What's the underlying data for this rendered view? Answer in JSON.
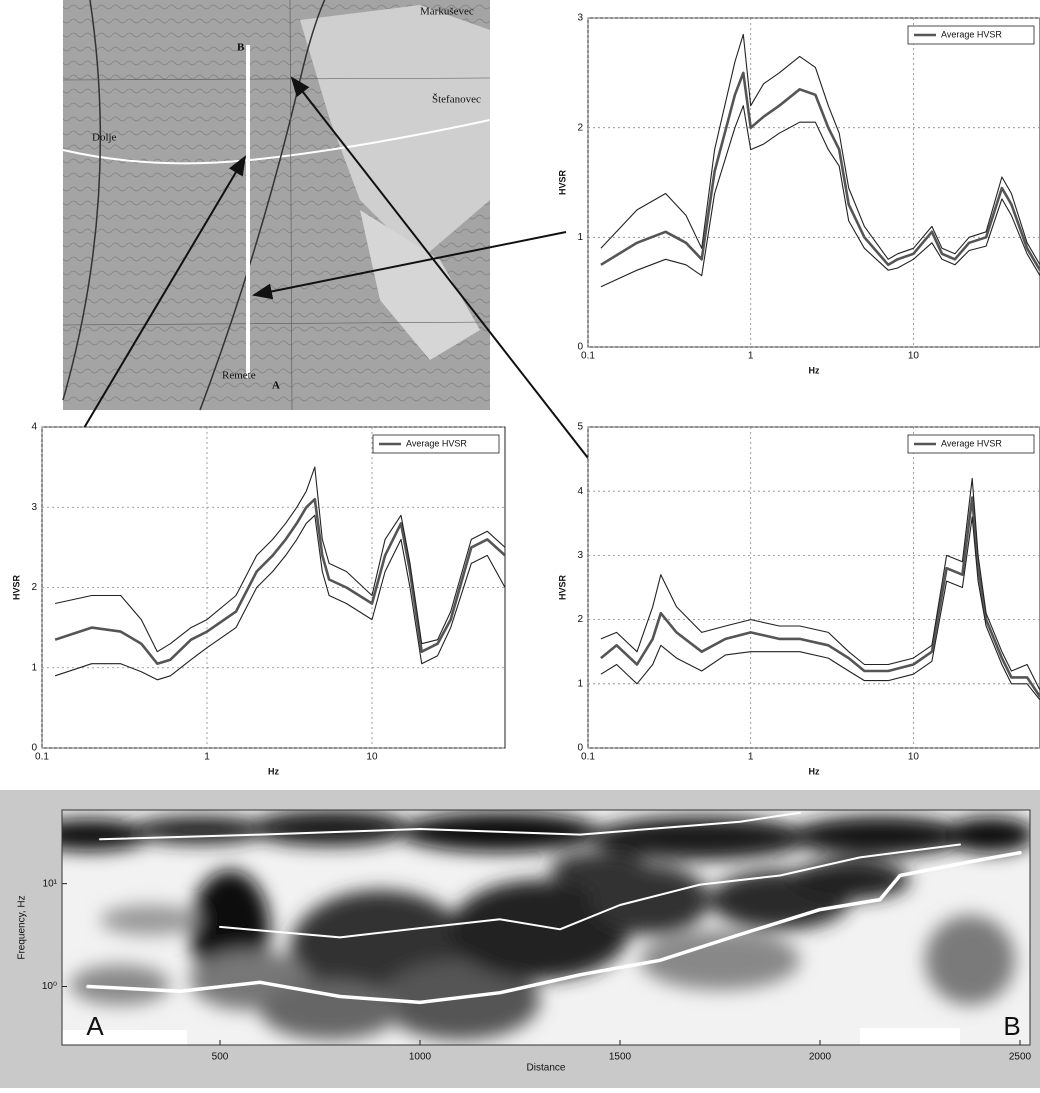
{
  "map": {
    "labels": [
      "B",
      "A",
      "Markuševec",
      "Štefanovec",
      "Dolje",
      "Remete"
    ]
  },
  "chart_data": [
    {
      "type": "line",
      "log_x": true,
      "grid": true,
      "legend": "upper right",
      "x_label": "Hz",
      "y_label": "HVSR",
      "xlim": [
        0.1,
        60
      ],
      "xticks": [
        0.1,
        1,
        10
      ],
      "ylim": [
        0,
        3
      ],
      "yticks": [
        0,
        1,
        2,
        3
      ],
      "x": [
        0.12,
        0.2,
        0.3,
        0.4,
        0.5,
        0.6,
        0.8,
        0.9,
        1,
        1.2,
        1.5,
        2,
        2.5,
        3,
        3.5,
        4,
        5,
        7,
        8,
        10,
        13,
        15,
        18,
        22,
        28,
        35,
        40,
        50,
        60
      ],
      "series": [
        {
          "name": "Average HVSR",
          "color": "#555555",
          "values": [
            0.75,
            0.95,
            1.05,
            0.95,
            0.8,
            1.6,
            2.3,
            2.5,
            2.0,
            2.1,
            2.2,
            2.35,
            2.3,
            2.0,
            1.8,
            1.3,
            1.0,
            0.75,
            0.8,
            0.85,
            1.05,
            0.85,
            0.8,
            0.95,
            1.0,
            1.45,
            1.3,
            0.9,
            0.7
          ]
        },
        {
          "color": "#222222",
          "values": [
            0.9,
            1.25,
            1.4,
            1.2,
            0.9,
            1.8,
            2.6,
            2.85,
            2.2,
            2.4,
            2.5,
            2.65,
            2.55,
            2.2,
            1.95,
            1.45,
            1.1,
            0.8,
            0.85,
            0.9,
            1.1,
            0.9,
            0.85,
            1.0,
            1.05,
            1.55,
            1.4,
            0.95,
            0.75
          ]
        },
        {
          "color": "#222222",
          "values": [
            0.55,
            0.7,
            0.8,
            0.75,
            0.65,
            1.4,
            2.0,
            2.2,
            1.8,
            1.85,
            1.95,
            2.05,
            2.05,
            1.8,
            1.65,
            1.15,
            0.9,
            0.7,
            0.72,
            0.8,
            0.95,
            0.8,
            0.75,
            0.88,
            0.92,
            1.35,
            1.2,
            0.85,
            0.65
          ]
        }
      ]
    },
    {
      "type": "line",
      "log_x": true,
      "grid": true,
      "legend": "upper right",
      "x_label": "Hz",
      "y_label": "HVSR",
      "xlim": [
        0.1,
        64
      ],
      "xticks": [
        0.1,
        1,
        10
      ],
      "ylim": [
        0,
        4
      ],
      "yticks": [
        0,
        1,
        2,
        3,
        4
      ],
      "x": [
        0.12,
        0.2,
        0.3,
        0.4,
        0.5,
        0.6,
        0.8,
        1,
        1.5,
        2,
        2.5,
        3,
        3.5,
        4,
        4.5,
        5,
        5.5,
        7,
        10,
        12,
        15,
        17,
        20,
        25,
        30,
        40,
        50,
        64
      ],
      "series": [
        {
          "name": "Average HVSR",
          "color": "#555555",
          "values": [
            1.35,
            1.5,
            1.45,
            1.3,
            1.05,
            1.1,
            1.35,
            1.45,
            1.7,
            2.2,
            2.4,
            2.6,
            2.8,
            3.0,
            3.1,
            2.4,
            2.1,
            2.0,
            1.8,
            2.4,
            2.8,
            2.2,
            1.2,
            1.3,
            1.6,
            2.5,
            2.6,
            2.4
          ]
        },
        {
          "color": "#222222",
          "values": [
            1.8,
            1.9,
            1.9,
            1.6,
            1.2,
            1.3,
            1.5,
            1.6,
            1.9,
            2.4,
            2.6,
            2.8,
            3.0,
            3.2,
            3.5,
            2.6,
            2.3,
            2.2,
            1.9,
            2.6,
            2.9,
            2.3,
            1.3,
            1.35,
            1.7,
            2.6,
            2.7,
            2.5
          ]
        },
        {
          "color": "#222222",
          "values": [
            0.9,
            1.05,
            1.05,
            0.95,
            0.85,
            0.9,
            1.1,
            1.25,
            1.5,
            2.0,
            2.2,
            2.4,
            2.6,
            2.8,
            2.9,
            2.2,
            1.9,
            1.8,
            1.6,
            2.2,
            2.6,
            2.0,
            1.05,
            1.15,
            1.5,
            2.3,
            2.4,
            2.0
          ]
        }
      ]
    },
    {
      "type": "line",
      "log_x": true,
      "grid": true,
      "legend": "upper right",
      "x_label": "Hz",
      "y_label": "HVSR",
      "xlim": [
        0.1,
        60
      ],
      "xticks": [
        0.1,
        1,
        10
      ],
      "ylim": [
        0,
        5
      ],
      "yticks": [
        0,
        1,
        2,
        3,
        4,
        5
      ],
      "x": [
        0.12,
        0.15,
        0.2,
        0.25,
        0.28,
        0.35,
        0.5,
        0.7,
        1,
        1.5,
        2,
        3,
        4,
        5,
        7,
        10,
        13,
        16,
        20,
        23,
        25,
        28,
        35,
        40,
        50,
        60
      ],
      "series": [
        {
          "name": "Average HVSR",
          "color": "#555555",
          "values": [
            1.4,
            1.6,
            1.3,
            1.7,
            2.1,
            1.8,
            1.5,
            1.7,
            1.8,
            1.7,
            1.7,
            1.6,
            1.4,
            1.2,
            1.2,
            1.3,
            1.5,
            2.8,
            2.7,
            3.9,
            2.8,
            2.0,
            1.4,
            1.1,
            1.1,
            0.8
          ]
        },
        {
          "color": "#222222",
          "values": [
            1.7,
            1.8,
            1.5,
            2.2,
            2.7,
            2.2,
            1.8,
            1.9,
            2.0,
            1.9,
            1.9,
            1.8,
            1.5,
            1.3,
            1.3,
            1.4,
            1.6,
            3.0,
            2.9,
            4.2,
            3.0,
            2.1,
            1.5,
            1.2,
            1.3,
            0.9
          ]
        },
        {
          "color": "#222222",
          "values": [
            1.15,
            1.3,
            1.0,
            1.3,
            1.6,
            1.4,
            1.2,
            1.45,
            1.5,
            1.5,
            1.5,
            1.4,
            1.2,
            1.05,
            1.05,
            1.15,
            1.35,
            2.6,
            2.5,
            3.6,
            2.6,
            1.9,
            1.3,
            1.0,
            1.0,
            0.75
          ]
        }
      ]
    },
    {
      "type": "contour",
      "log_y": true,
      "x_label": "Distance",
      "y_label": "Frequency, Hz",
      "xlim": [
        105,
        2525
      ],
      "xticks": [
        500,
        1000,
        1500,
        2000,
        2500
      ],
      "ylim": [
        0.27,
        52
      ],
      "yticks": [
        {
          "value": 1,
          "label": "10⁰"
        },
        {
          "value": 10,
          "label": "10¹"
        }
      ],
      "annotations": [
        "A",
        "B"
      ],
      "series": [
        {
          "color": "#ffffff",
          "x": [
            170,
            400,
            600,
            800,
            1000,
            1200,
            1400,
            1600,
            1800,
            2000,
            2150,
            2200,
            2400,
            2500
          ],
          "values": [
            1.0,
            0.9,
            1.1,
            0.8,
            0.7,
            0.87,
            1.3,
            1.8,
            3.2,
            5.6,
            7,
            12,
            17,
            20
          ]
        },
        {
          "color": "#ffffff",
          "x": [
            500,
            800,
            1000,
            1200,
            1350,
            1500,
            1700,
            1900,
            2100,
            2350
          ],
          "values": [
            3.8,
            3.0,
            3.7,
            4.5,
            3.6,
            6.2,
            9.8,
            12,
            18,
            24
          ]
        },
        {
          "color": "#ffffff",
          "x": [
            200,
            600,
            1000,
            1400,
            1800,
            1950
          ],
          "values": [
            27,
            30,
            34,
            30,
            40,
            49
          ]
        }
      ]
    }
  ]
}
